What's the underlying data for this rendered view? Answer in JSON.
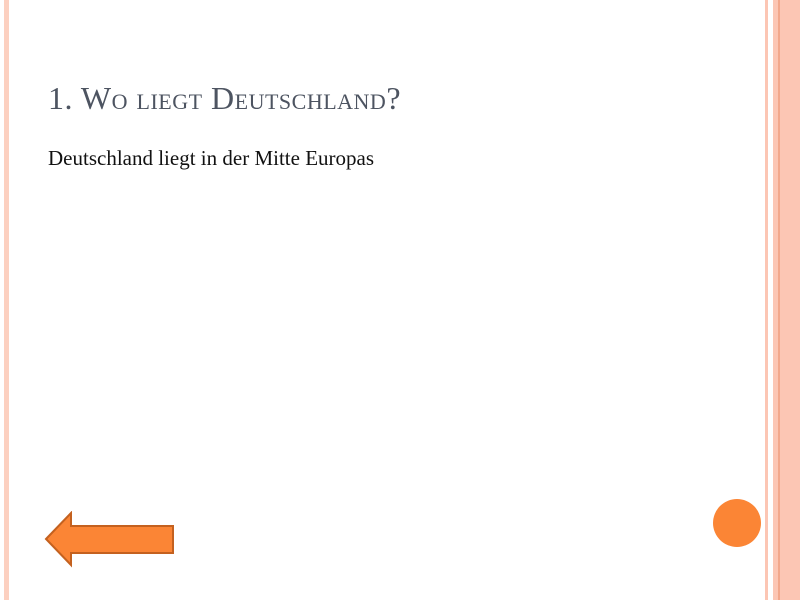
{
  "slide": {
    "title": "1. Wo liegt Deutschland?",
    "body": "Deutschland liegt in der Mitte Europas"
  },
  "colors": {
    "accent": "#fb8535",
    "stripe": "#fcc6b4",
    "title": "#4d5461"
  },
  "icons": {
    "back": "arrow-left-icon",
    "next": "circle-button-icon"
  }
}
